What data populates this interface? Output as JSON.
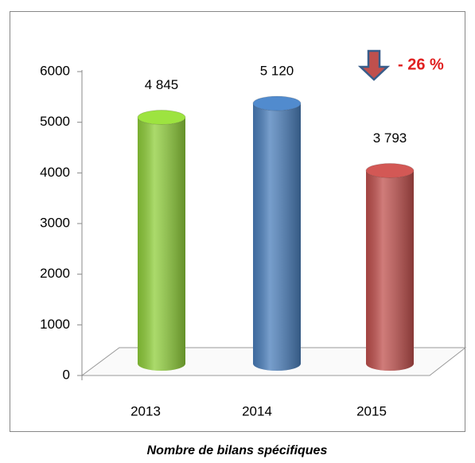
{
  "chart_data": {
    "type": "bar",
    "categories": [
      "2013",
      "2014",
      "2015"
    ],
    "values": [
      4845,
      5120,
      3793
    ],
    "value_labels": [
      "4 845",
      "5 120",
      "3 793"
    ],
    "colors": [
      "#8fce3a",
      "#4a7ebb",
      "#c0504d"
    ],
    "ylim": [
      0,
      6000
    ],
    "yticks": [
      0,
      1000,
      2000,
      3000,
      4000,
      5000,
      6000
    ],
    "annotation": "- 26 %",
    "caption": "Nombre de bilans spécifiques"
  }
}
